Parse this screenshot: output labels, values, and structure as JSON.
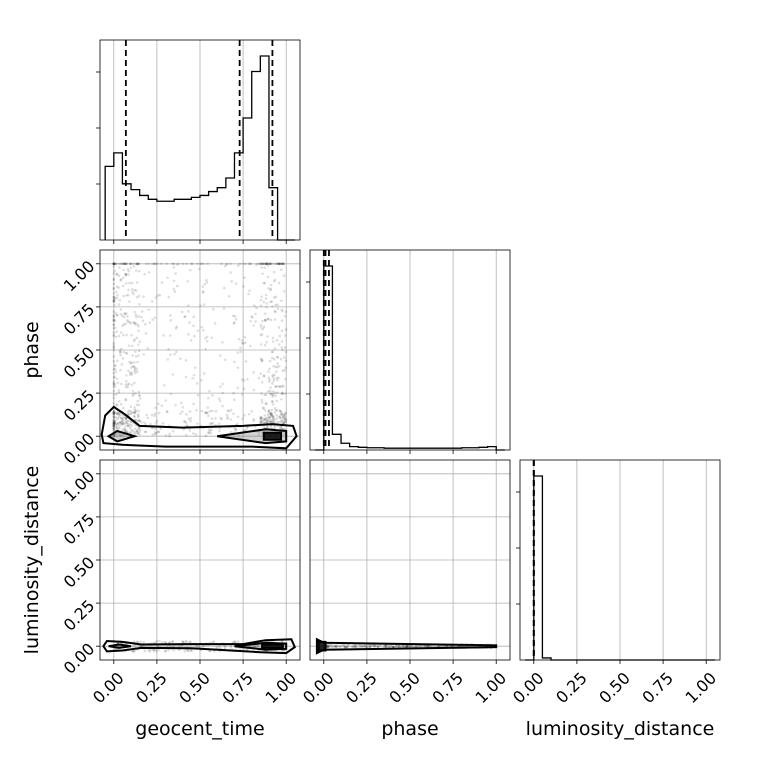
{
  "chart_data": {
    "type": "corner",
    "parameters": [
      "geocent_time",
      "phase",
      "luminosity_distance"
    ],
    "tick_labels": [
      "0.00",
      "0.25",
      "0.50",
      "0.75",
      "1.00"
    ],
    "range": [
      -0.08,
      1.08
    ],
    "quantile_lines": {
      "geocent_time": [
        0.07,
        0.73,
        0.92
      ],
      "phase": [
        0.0,
        0.01,
        0.03
      ],
      "luminosity_distance": [
        0.0,
        0.0,
        0.0
      ]
    },
    "histograms": {
      "geocent_time": {
        "bin_edges": [
          -0.05,
          0.0,
          0.05,
          0.1,
          0.15,
          0.2,
          0.25,
          0.3,
          0.35,
          0.4,
          0.45,
          0.5,
          0.55,
          0.6,
          0.65,
          0.7,
          0.75,
          0.8,
          0.85,
          0.9,
          0.95,
          1.0,
          1.05
        ],
        "counts": [
          0.38,
          0.45,
          0.29,
          0.26,
          0.23,
          0.21,
          0.2,
          0.2,
          0.21,
          0.21,
          0.22,
          0.23,
          0.25,
          0.27,
          0.32,
          0.45,
          0.63,
          0.87,
          0.95,
          0.27,
          0,
          0
        ]
      },
      "phase": {
        "bin_edges": [
          -0.05,
          0.0,
          0.05,
          0.1,
          0.15,
          0.2,
          0.25,
          0.3,
          0.35,
          0.4,
          0.45,
          0.5,
          0.55,
          0.6,
          0.65,
          0.7,
          0.75,
          0.8,
          0.85,
          0.9,
          0.95,
          1.0,
          1.05
        ],
        "counts": [
          0,
          0.82,
          0.07,
          0.03,
          0.015,
          0.012,
          0.01,
          0.01,
          0.008,
          0.008,
          0.008,
          0.008,
          0.008,
          0.008,
          0.008,
          0.008,
          0.008,
          0.01,
          0.01,
          0.012,
          0.015,
          0
        ]
      },
      "luminosity_distance": {
        "bin_edges": [
          -0.05,
          0.0,
          0.05,
          0.1,
          0.15,
          0.2,
          0.25,
          0.3,
          0.35,
          0.4,
          0.45,
          0.5,
          0.55,
          0.6,
          0.65,
          0.7,
          0.75,
          0.8,
          0.85,
          0.9,
          0.95,
          1.0,
          1.05
        ],
        "counts": [
          0,
          0.9,
          0.01,
          0,
          0,
          0,
          0,
          0,
          0,
          0,
          0,
          0,
          0,
          0,
          0,
          0,
          0,
          0,
          0,
          0,
          0,
          0
        ]
      }
    },
    "contours": {
      "phase_vs_geocent_time": [
        [
          [
            -0.07,
            0.01
          ],
          [
            -0.05,
            0.12
          ],
          [
            0.0,
            0.17
          ],
          [
            0.06,
            0.13
          ],
          [
            0.15,
            0.06
          ],
          [
            0.4,
            0.05
          ],
          [
            0.75,
            0.06
          ],
          [
            0.92,
            0.07
          ],
          [
            1.04,
            0.06
          ],
          [
            1.06,
            0.0
          ],
          [
            1.0,
            -0.07
          ],
          [
            0.8,
            -0.06
          ],
          [
            0.3,
            -0.06
          ],
          [
            0.05,
            -0.05
          ],
          [
            -0.06,
            -0.04
          ],
          [
            -0.07,
            0.01
          ]
        ],
        [
          [
            -0.03,
            0.0
          ],
          [
            0.02,
            0.03
          ],
          [
            0.12,
            0.0
          ],
          [
            0.02,
            -0.03
          ],
          [
            -0.03,
            0.0
          ]
        ],
        [
          [
            0.6,
            0.0
          ],
          [
            0.88,
            0.04
          ],
          [
            1.0,
            0.03
          ],
          [
            1.0,
            -0.03
          ],
          [
            0.88,
            -0.04
          ],
          [
            0.6,
            0.0
          ]
        ],
        [
          [
            0.87,
            0.02
          ],
          [
            0.97,
            0.02
          ],
          [
            0.97,
            -0.02
          ],
          [
            0.87,
            -0.02
          ],
          [
            0.87,
            0.02
          ]
        ]
      ],
      "luminosity_distance_vs_geocent_time": [
        [
          [
            -0.06,
            0.0
          ],
          [
            -0.04,
            0.03
          ],
          [
            0.05,
            0.025
          ],
          [
            0.16,
            0.01
          ],
          [
            0.45,
            0.012
          ],
          [
            0.75,
            0.012
          ],
          [
            0.88,
            0.035
          ],
          [
            1.03,
            0.04
          ],
          [
            1.05,
            -0.005
          ],
          [
            1.0,
            -0.04
          ],
          [
            0.85,
            -0.035
          ],
          [
            0.45,
            -0.012
          ],
          [
            0.16,
            -0.01
          ],
          [
            0.05,
            -0.025
          ],
          [
            -0.04,
            -0.03
          ],
          [
            -0.06,
            0.0
          ]
        ],
        [
          [
            -0.03,
            0.0
          ],
          [
            0.03,
            0.01
          ],
          [
            0.1,
            0.0
          ],
          [
            0.03,
            -0.01
          ],
          [
            -0.03,
            0.0
          ]
        ],
        [
          [
            0.7,
            0.0
          ],
          [
            0.88,
            0.02
          ],
          [
            1.0,
            0.015
          ],
          [
            1.0,
            -0.015
          ],
          [
            0.88,
            -0.02
          ],
          [
            0.7,
            0.0
          ]
        ],
        [
          [
            0.86,
            0.01
          ],
          [
            0.98,
            0.01
          ],
          [
            0.98,
            -0.01
          ],
          [
            0.86,
            -0.01
          ],
          [
            0.86,
            0.01
          ]
        ]
      ],
      "luminosity_distance_vs_phase": [
        [
          [
            -0.04,
            0.04
          ],
          [
            0.0,
            0.02
          ],
          [
            1.0,
            0.005
          ],
          [
            1.0,
            -0.005
          ],
          [
            0.0,
            -0.02
          ],
          [
            -0.04,
            -0.04
          ],
          [
            -0.04,
            0.04
          ]
        ],
        [
          [
            -0.03,
            0.025
          ],
          [
            0.01,
            0.025
          ],
          [
            0.01,
            -0.025
          ],
          [
            -0.03,
            -0.025
          ],
          [
            -0.03,
            0.025
          ]
        ]
      ]
    }
  }
}
